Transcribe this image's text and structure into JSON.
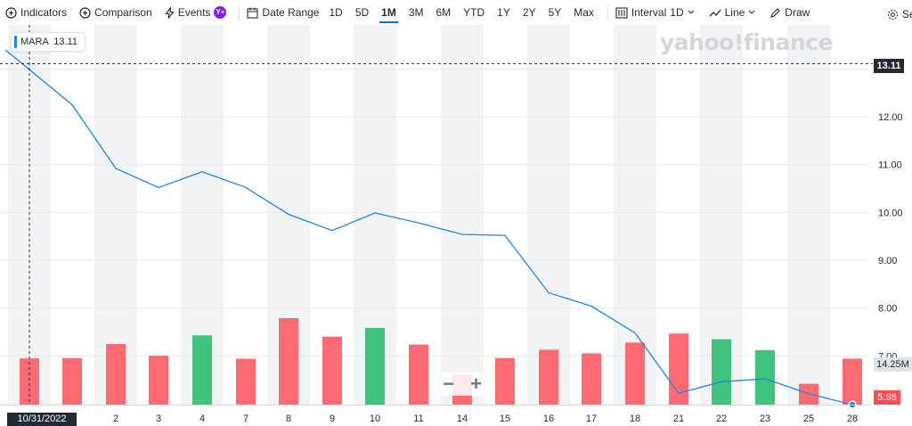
{
  "toolbar": {
    "indicators": "Indicators",
    "comparison": "Comparison",
    "events": "Events",
    "events_badge": "Y+",
    "date_range": "Date Range",
    "ranges": [
      "1D",
      "5D",
      "1M",
      "3M",
      "6M",
      "YTD",
      "1Y",
      "2Y",
      "5Y",
      "Max"
    ],
    "active_range": "1M",
    "interval_label": "Interval",
    "interval_value": "1D",
    "line_label": "Line",
    "draw": "Draw",
    "settings": "Se"
  },
  "watermark": "yahoo!finance",
  "legend": {
    "symbol": "MARA",
    "value": "13.11"
  },
  "price_tag": "13.11",
  "volume_tag": "14.25M",
  "last_tag": "5.98",
  "crosshair_date": "10/31/2022",
  "zoom": {
    "minus": "−",
    "plus": "+"
  },
  "chart_data": {
    "type": "line",
    "x": [
      "31",
      "1",
      "2",
      "3",
      "4",
      "7",
      "8",
      "9",
      "10",
      "11",
      "14",
      "15",
      "16",
      "17",
      "18",
      "21",
      "22",
      "23",
      "25",
      "28"
    ],
    "series": [
      {
        "name": "MARA",
        "values": [
          13.11,
          12.25,
          10.92,
          10.52,
          10.85,
          10.52,
          9.96,
          9.62,
          9.99,
          9.78,
          9.54,
          9.52,
          8.32,
          8.04,
          7.48,
          6.22,
          6.46,
          6.52,
          6.21,
          5.98
        ]
      }
    ],
    "volume": {
      "values": [
        4.85,
        4.88,
        6.37,
        5.15,
        7.27,
        4.82,
        9.08,
        7.14,
        8.06,
        6.31,
        3.16,
        4.9,
        5.77,
        5.38,
        6.52,
        7.47,
        6.87,
        5.72,
        2.19,
        4.83
      ],
      "direction": [
        "down",
        "down",
        "down",
        "down",
        "up",
        "down",
        "down",
        "down",
        "up",
        "down",
        "down",
        "down",
        "down",
        "down",
        "down",
        "down",
        "up",
        "up",
        "down",
        "down"
      ]
    },
    "yticks": [
      "13.00",
      "12.00",
      "11.00",
      "10.00",
      "9.00",
      "8.00",
      "7.00"
    ],
    "ylim": [
      5.75,
      13.8
    ],
    "xtick_labels": [
      "2",
      "3",
      "4",
      "7",
      "8",
      "9",
      "10",
      "11",
      "14",
      "15",
      "16",
      "17",
      "18",
      "21",
      "22",
      "23",
      "25",
      "28"
    ],
    "colors": {
      "line": "#1e88e5",
      "up": "#3fc37f",
      "down": "#ff6b70",
      "band": "#f2f3f4"
    }
  }
}
